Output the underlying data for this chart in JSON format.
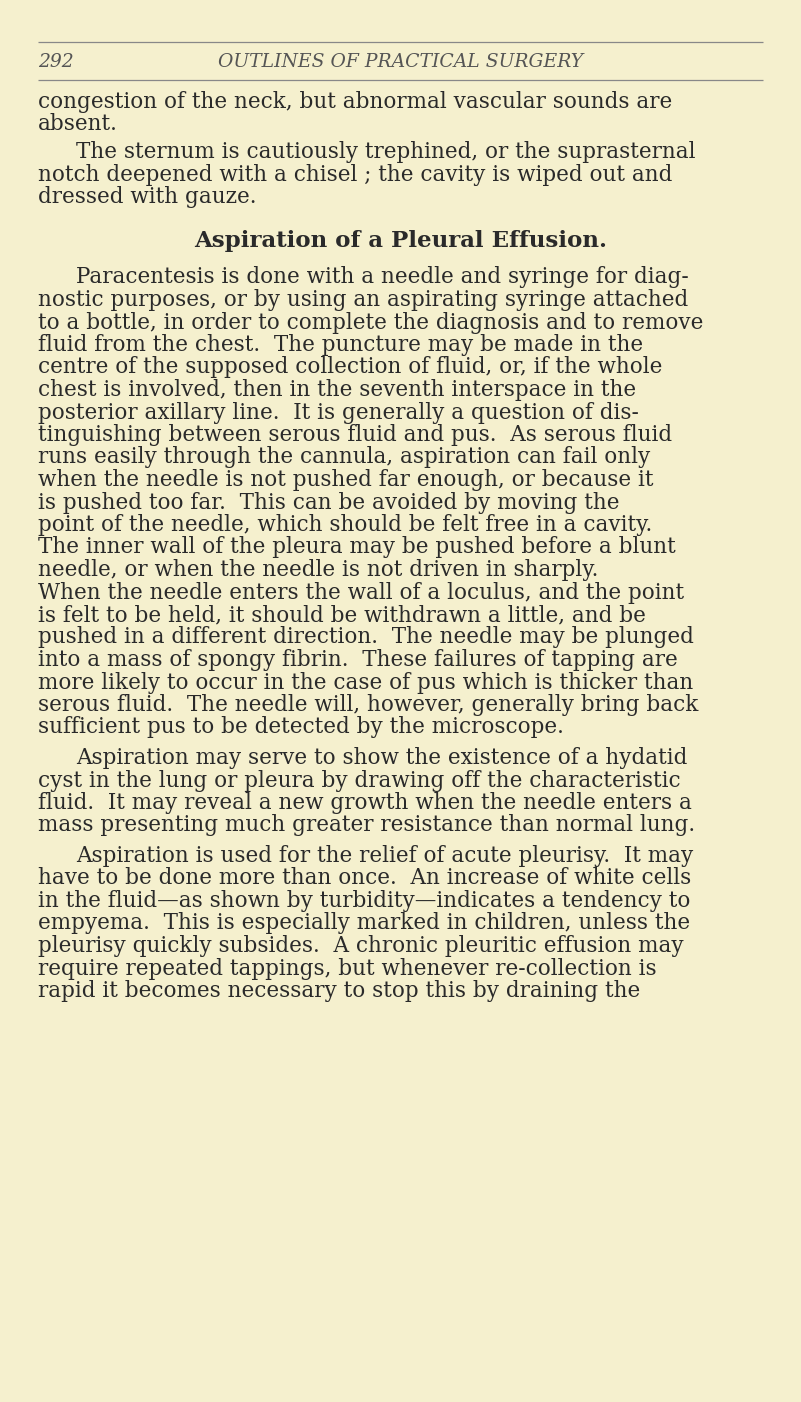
{
  "bg_color": "#f5f0ce",
  "page_number": "292",
  "header_title": "OUTLINES OF PRACTICAL SURGERY",
  "section_heading": "Aspiration of a Pleural Effusion.",
  "text_color": "#2a2a2a",
  "header_color": "#555555",
  "line_color": "#888888",
  "font_size_body": 15.5,
  "font_size_header": 13.5,
  "font_size_heading": 16.5,
  "para0_lines": [
    "congestion of the neck, but abnormal vascular sounds are",
    "absent."
  ],
  "para1_lines": [
    "The sternum is cautiously trephined, or the suprasternal",
    "notch deepened with a chisel ; the cavity is wiped out and",
    "dressed with gauze."
  ],
  "para2_lines": [
    "Paracentesis is done with a needle and syringe for diag-",
    "nostic purposes, or by using an aspirating syringe attached",
    "to a bottle, in order to complete the diagnosis and to remove",
    "fluid from the chest.  The puncture may be made in the",
    "centre of the supposed collection of fluid, or, if the whole",
    "chest is involved, then in the seventh interspace in the",
    "posterior axillary line.  It is generally a question of dis-",
    "tinguishing between serous fluid and pus.  As serous fluid",
    "runs easily through the cannula, aspiration can fail only",
    "when the needle is not pushed far enough, or because it",
    "is pushed too far.  This can be avoided by moving the",
    "point of the needle, which should be felt free in a cavity.",
    "The inner wall of the pleura may be pushed before a blunt",
    "needle, or when the needle is not driven in sharply.",
    "When the needle enters the wall of a loculus, and the point",
    "is felt to be held, it should be withdrawn a little, and be",
    "pushed in a different direction.  The needle may be plunged",
    "into a mass of spongy fibrin.  These failures of tapping are",
    "more likely to occur in the case of pus which is thicker than",
    "serous fluid.  The needle will, however, generally bring back",
    "sufficient pus to be detected by the microscope."
  ],
  "para3_lines": [
    "Aspiration may serve to show the existence of a hydatid",
    "cyst in the lung or pleura by drawing off the characteristic",
    "fluid.  It may reveal a new growth when the needle enters a",
    "mass presenting much greater resistance than normal lung."
  ],
  "para4_lines": [
    "Aspiration is used for the relief of acute pleurisy.  It may",
    "have to be done more than once.  An increase of white cells",
    "in the fluid—as shown by turbidity—indicates a tendency to",
    "empyema.  This is especially marked in children, unless the",
    "pleurisy quickly subsides.  A chronic pleuritic effusion may",
    "require repeated tappings, but whenever re-collection is",
    "rapid it becomes necessary to stop this by draining the"
  ]
}
